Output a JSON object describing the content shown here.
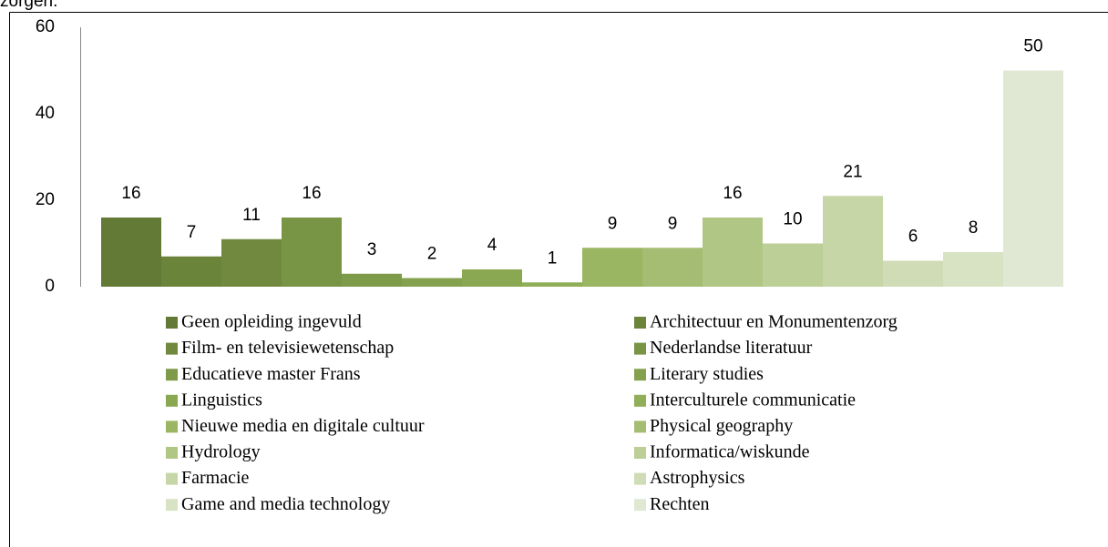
{
  "header_text": "zorgen.",
  "chart_data": {
    "type": "bar",
    "categories": [
      "Geen opleiding ingevuld",
      "Architectuur en Monumentenzorg",
      "Film- en televisiewetenschap",
      "Nederlandse literatuur",
      "Educatieve master Frans",
      "Literary studies",
      "Linguistics",
      "Interculturele communicatie",
      "Nieuwe media en digitale cultuur",
      "Physical geography",
      "Hydrology",
      "Informatica/wiskunde",
      "Farmacie",
      "Astrophysics",
      "Game and media technology",
      "Rechten"
    ],
    "values": [
      16,
      7,
      11,
      16,
      3,
      2,
      4,
      1,
      9,
      9,
      16,
      10,
      21,
      6,
      8,
      50
    ],
    "colors": [
      "#637a37",
      "#6a843a",
      "#70893f",
      "#789545",
      "#7d9b48",
      "#84a24e",
      "#8aa852",
      "#91ae58",
      "#9ab662",
      "#a4bd72",
      "#b0c684",
      "#bccf96",
      "#c6d6a6",
      "#cfdcb5",
      "#d8e3c4",
      "#e0e8d3"
    ],
    "ylim": [
      0,
      60
    ],
    "yticks": [
      0,
      20,
      40,
      60
    ],
    "grid": false,
    "legend": "bottom"
  }
}
